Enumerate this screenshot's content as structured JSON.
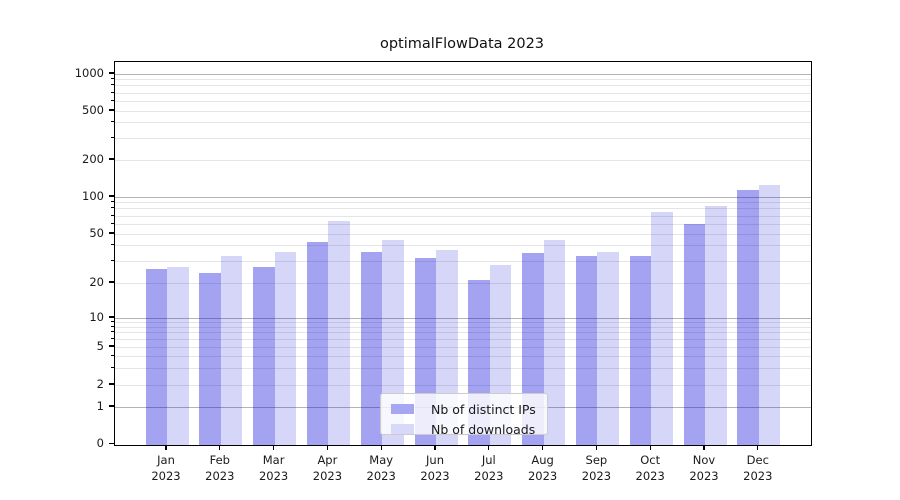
{
  "title": "optimalFlowData 2023",
  "chart_data": {
    "type": "bar",
    "title": "optimalFlowData 2023",
    "x_categories": [
      "Jan",
      "Feb",
      "Mar",
      "Apr",
      "May",
      "Jun",
      "Jul",
      "Aug",
      "Sep",
      "Oct",
      "Nov",
      "Dec"
    ],
    "x_year": "2023",
    "series": [
      {
        "name": "Nb of distinct IPs",
        "values": [
          26,
          24,
          27,
          43,
          36,
          32,
          21,
          35,
          33,
          33,
          60,
          115
        ],
        "bar_color": "rgba(0,0,215,0.36)",
        "legend_color": "#a6a6f2"
      },
      {
        "name": "Nb of downloads",
        "values": [
          27,
          33,
          36,
          64,
          45,
          37,
          28,
          45,
          36,
          75,
          85,
          125
        ],
        "bar_color": "rgba(0,0,215,0.16)",
        "legend_color": "#d8d8f9"
      }
    ],
    "y_axis": {
      "scale": "symlog",
      "ticks": [
        0,
        1,
        2,
        5,
        10,
        20,
        50,
        100,
        200,
        500,
        1000
      ],
      "range": [
        0,
        1000
      ]
    },
    "grid": true,
    "legend_position": "lower center"
  },
  "colors": {
    "grid_major": "#b4b4b4",
    "grid_minor": "#e5e5e5",
    "spine": "#000000",
    "text": "#1a1a1a",
    "background": "#ffffff"
  }
}
